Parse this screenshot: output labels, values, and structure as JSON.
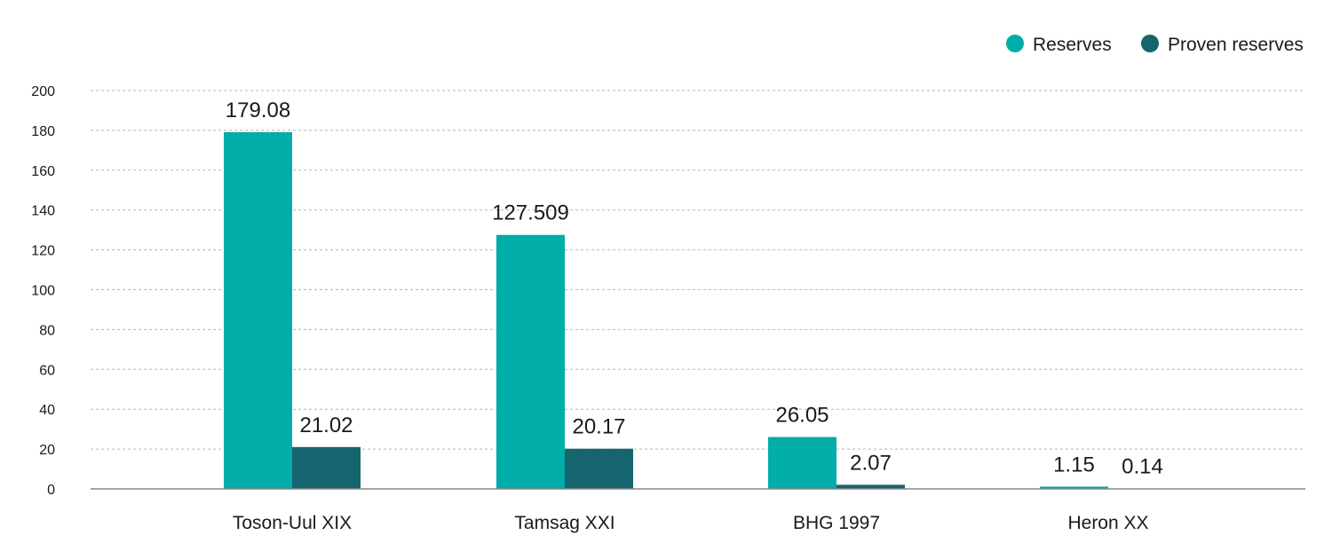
{
  "colors": {
    "reserves": "#00ADA9",
    "proven_reserves": "#16646E",
    "grid": "#b5b5b5",
    "axis": "#888888"
  },
  "chart_data": {
    "type": "bar",
    "title": "",
    "xlabel": "",
    "ylabel": "",
    "categories": [
      "Toson-Uul XIX",
      "Tamsag XXI",
      "BHG 1997",
      "Heron XX"
    ],
    "series": [
      {
        "name": "Reserves",
        "values": [
          179.08,
          127.509,
          26.05,
          1.15
        ],
        "display_values": [
          "179.08",
          "127.509",
          "26.05",
          "1.15"
        ],
        "color": "#00ADA9"
      },
      {
        "name": "Proven reserves",
        "values": [
          21.02,
          20.17,
          2.07,
          0.14
        ],
        "display_values": [
          "21.02",
          "20.17",
          "2.07",
          "0.14"
        ],
        "color": "#16646E"
      }
    ],
    "ylim": [
      0,
      200
    ],
    "yticks": [
      0,
      20,
      40,
      60,
      80,
      100,
      120,
      140,
      160,
      180,
      200
    ],
    "grid": true,
    "legend_position": "top-right"
  }
}
